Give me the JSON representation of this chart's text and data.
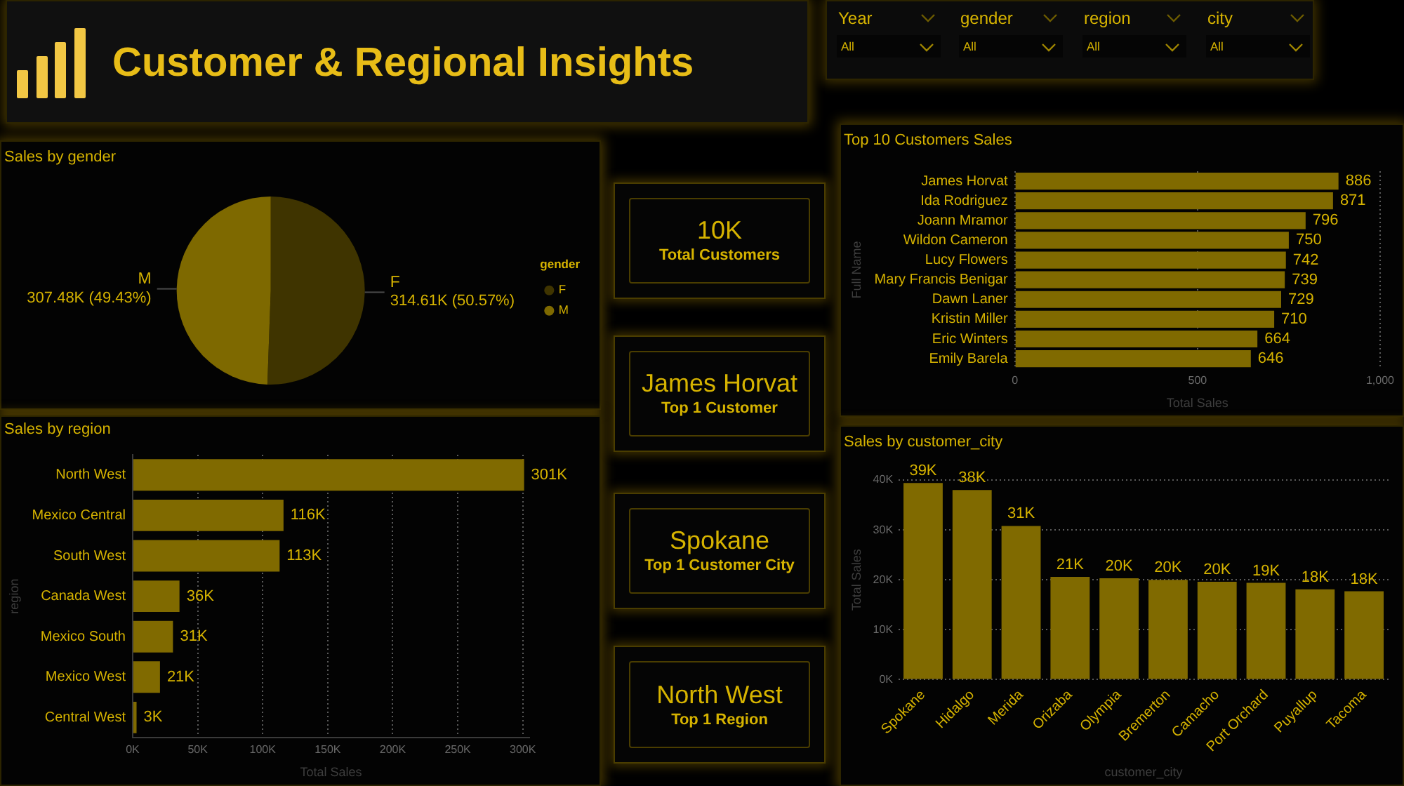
{
  "chart_data": [
    {
      "type": "other",
      "title": "Customer & Regional Insights"
    },
    {
      "type": "other",
      "title": "Year",
      "annotations": [
        "All"
      ]
    },
    {
      "type": "other",
      "title": "gender",
      "annotations": [
        "All"
      ]
    },
    {
      "type": "other",
      "title": "region",
      "annotations": [
        "All"
      ]
    },
    {
      "type": "other",
      "title": "city",
      "annotations": [
        "All"
      ]
    },
    {
      "type": "pie",
      "title": "Sales by gender",
      "categories": [
        "F",
        "M"
      ],
      "values": [
        50.57,
        49.43
      ],
      "colors": [
        "#3f3400",
        "#7e6900"
      ],
      "value_labels": [
        "314.61K (50.57%)",
        "307.48K (49.43%)"
      ],
      "legend": "right",
      "legend_title": "gender"
    },
    {
      "type": "bar",
      "title": "Sales by region",
      "orientation": "horizontal",
      "categories": [
        "North West",
        "Mexico Central",
        "South West",
        "Canada West",
        "Mexico South",
        "Mexico West",
        "Central West"
      ],
      "values": [
        301,
        116,
        113,
        36,
        31,
        21,
        3
      ],
      "value_labels": [
        "301K",
        "116K",
        "113K",
        "36K",
        "31K",
        "21K",
        "3K"
      ],
      "color": "#806a00",
      "xlabel": "Total Sales",
      "ylabel": "region",
      "xlim": [
        0,
        305
      ],
      "xticks": [
        {
          "value": 0,
          "label": "0K"
        },
        {
          "value": 50,
          "label": "50K"
        },
        {
          "value": 100,
          "label": "100K"
        },
        {
          "value": 150,
          "label": "150K"
        },
        {
          "value": 200,
          "label": "200K"
        },
        {
          "value": 250,
          "label": "250K"
        },
        {
          "value": 300,
          "label": "300K"
        }
      ],
      "grid": "x"
    },
    {
      "type": "other",
      "annotations": [
        "10K",
        "Total Customers"
      ]
    },
    {
      "type": "other",
      "annotations": [
        "James Horvat",
        "Top 1 Customer"
      ]
    },
    {
      "type": "other",
      "annotations": [
        "Spokane",
        "Top 1 Customer City"
      ]
    },
    {
      "type": "other",
      "annotations": [
        "North West",
        "Top 1 Region"
      ]
    },
    {
      "type": "bar",
      "title": "Top 10 Customers Sales",
      "orientation": "horizontal",
      "categories": [
        "James Horvat",
        "Ida Rodriguez",
        "Joann Mramor",
        "Wildon Cameron",
        "Lucy Flowers",
        "Mary Francis Benigar",
        "Dawn Laner",
        "Kristin Miller",
        "Eric Winters",
        "Emily Barela"
      ],
      "values": [
        886,
        871,
        796,
        750,
        742,
        739,
        729,
        710,
        664,
        646
      ],
      "data_labels": true,
      "color": "#806a00",
      "xlabel": "Total Sales",
      "ylabel": "Full Name",
      "xlim": [
        0,
        1000
      ],
      "xticks": [
        0,
        500,
        {
          "value": 1000,
          "label": "1,000"
        }
      ],
      "grid": "x"
    },
    {
      "type": "bar",
      "title": "Sales by customer_city",
      "categories": [
        "Spokane",
        "Hidalgo",
        "Merida",
        "Orizaba",
        "Olympia",
        "Bremerton",
        "Camacho",
        "Port Orchard",
        "Puyallup",
        "Tacoma"
      ],
      "values": [
        39.4,
        38.0,
        30.8,
        20.6,
        20.3,
        20.0,
        19.6,
        19.4,
        18.1,
        17.7
      ],
      "value_labels": [
        "39K",
        "38K",
        "31K",
        "21K",
        "20K",
        "20K",
        "20K",
        "19K",
        "18K",
        "18K"
      ],
      "color": "#806a00",
      "xlabel": "customer_city",
      "ylabel": "Total Sales",
      "ylim": [
        0,
        40
      ],
      "yticks": [
        {
          "value": 0,
          "label": "0K"
        },
        {
          "value": 10,
          "label": "10K"
        },
        {
          "value": 20,
          "label": "20K"
        },
        {
          "value": 30,
          "label": "30K"
        },
        {
          "value": 40,
          "label": "40K"
        }
      ],
      "grid": "y"
    }
  ]
}
